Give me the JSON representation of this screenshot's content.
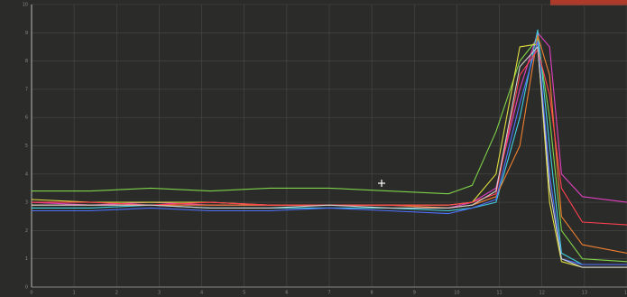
{
  "chart_data": {
    "type": "line",
    "x": [
      0,
      1.4,
      2.8,
      4.2,
      5.6,
      7,
      8.4,
      9.8,
      10.36,
      10.92,
      11.48,
      11.9,
      12.18,
      12.46,
      12.95,
      14
    ],
    "xlim": [
      0,
      14
    ],
    "xticks": [
      0,
      1,
      2,
      3,
      4,
      5,
      6,
      7,
      8,
      9,
      10,
      11,
      12,
      13,
      14
    ],
    "ylim": [
      0,
      10
    ],
    "yticks": [
      0,
      1,
      2,
      3,
      4,
      5,
      6,
      7,
      8,
      9,
      10
    ],
    "grid": true,
    "series": [
      {
        "color": "#7fd34a",
        "values": [
          3.4,
          3.4,
          3.5,
          3.4,
          3.5,
          3.5,
          3.4,
          3.3,
          3.6,
          5.5,
          8.0,
          8.8,
          6.0,
          2.0,
          1.0,
          0.9
        ]
      },
      {
        "color": "#e040c0",
        "values": [
          3.0,
          2.9,
          3.0,
          2.9,
          2.9,
          2.9,
          2.9,
          2.8,
          3.0,
          3.5,
          7.0,
          9.0,
          8.5,
          4.0,
          3.2,
          3.0
        ]
      },
      {
        "color": "#40d0e0",
        "values": [
          2.8,
          2.8,
          2.9,
          2.8,
          2.8,
          2.8,
          2.8,
          2.7,
          2.8,
          3.0,
          6.0,
          9.1,
          5.0,
          1.2,
          0.8,
          0.8
        ]
      },
      {
        "color": "#e0e040",
        "values": [
          3.1,
          3.0,
          3.0,
          3.0,
          2.9,
          2.9,
          2.9,
          2.9,
          3.0,
          4.0,
          8.5,
          8.6,
          3.0,
          0.9,
          0.7,
          0.7
        ]
      },
      {
        "color": "#f08030",
        "values": [
          2.9,
          2.9,
          2.9,
          2.9,
          2.9,
          2.9,
          2.9,
          2.8,
          2.9,
          3.2,
          5.0,
          8.9,
          7.5,
          2.5,
          1.5,
          1.2
        ]
      },
      {
        "color": "#5070ff",
        "values": [
          2.7,
          2.7,
          2.8,
          2.7,
          2.7,
          2.8,
          2.7,
          2.6,
          2.8,
          3.1,
          6.5,
          8.7,
          4.0,
          1.0,
          0.8,
          0.8
        ]
      },
      {
        "color": "#ff4050",
        "values": [
          3.0,
          3.0,
          2.9,
          3.0,
          2.9,
          2.9,
          2.9,
          2.9,
          3.0,
          3.3,
          7.5,
          8.4,
          6.8,
          3.5,
          2.3,
          2.2
        ]
      },
      {
        "color": "#d0d0d0",
        "values": [
          2.9,
          2.9,
          2.9,
          2.8,
          2.8,
          2.9,
          2.8,
          2.8,
          2.9,
          3.4,
          7.8,
          8.5,
          3.5,
          1.0,
          0.7,
          0.7
        ]
      }
    ]
  }
}
